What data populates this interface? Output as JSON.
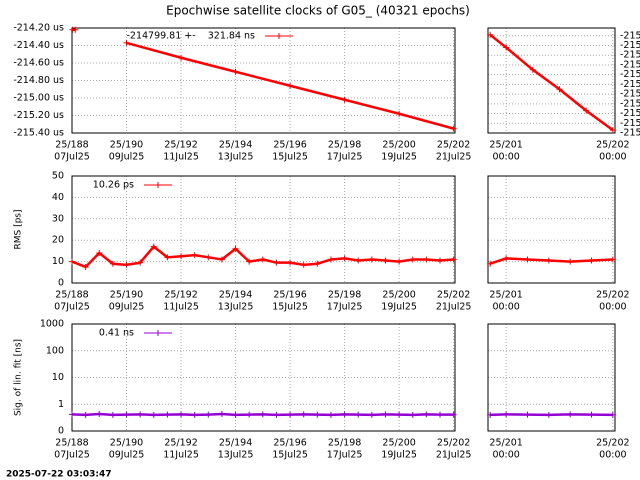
{
  "title": "Epochwise satellite clocks of G05_ (40321 epochs)",
  "timestamp": "2025-07-22 03:03:47",
  "chart_data": [
    {
      "type": "line",
      "grid": true,
      "xlim": [
        188,
        202.05
      ],
      "ylim": [
        -215.4,
        -214.2
      ],
      "xticks": [
        {
          "value": 188,
          "label": "25/188",
          "date": "07Jul25"
        },
        {
          "value": 190,
          "label": "25/190",
          "date": "09Jul25"
        },
        {
          "value": 192,
          "label": "25/192",
          "date": "11Jul25"
        },
        {
          "value": 194,
          "label": "25/194",
          "date": "13Jul25"
        },
        {
          "value": 196,
          "label": "25/196",
          "date": "15Jul25"
        },
        {
          "value": 198,
          "label": "25/198",
          "date": "17Jul25"
        },
        {
          "value": 200,
          "label": "25/200",
          "date": "19Jul25"
        },
        {
          "value": 202,
          "label": "25/202",
          "date": "21Jul25"
        }
      ],
      "yticks": [
        {
          "value": -215.4,
          "label": "-215.40 us"
        },
        {
          "value": -215.2,
          "label": "-215.20 us"
        },
        {
          "value": -215.0,
          "label": "-215.00 us"
        },
        {
          "value": -214.8,
          "label": "-214.80 us"
        },
        {
          "value": -214.6,
          "label": "-214.60 us"
        },
        {
          "value": -214.4,
          "label": "-214.40 us"
        },
        {
          "value": -214.2,
          "label": "-214.20 us"
        }
      ],
      "x": [
        188.02,
        188.12,
        189,
        190,
        192,
        194,
        196,
        198,
        200,
        202
      ],
      "series": [
        {
          "name": "-214799.81 +-    321.84 ns",
          "color": "#ff0000",
          "values": [
            -214.22,
            -214.22,
            null,
            -214.37,
            -214.54,
            -214.7,
            -214.86,
            -215.02,
            -215.18,
            -215.35
          ]
        }
      ]
    },
    {
      "type": "line",
      "grid": true,
      "yaxis_side": "right",
      "xlim": [
        200.83,
        202.02
      ],
      "ylim": [
        -215.38,
        -215.272
      ],
      "xticks": [
        {
          "value": 201,
          "label": "25/201",
          "date": "00:00"
        },
        {
          "value": 202,
          "label": "25/202",
          "date": "00:00"
        }
      ],
      "yticks": [
        {
          "value": -215.28,
          "label": "-215"
        },
        {
          "value": -215.29,
          "label": "-215"
        },
        {
          "value": -215.3,
          "label": "-215"
        },
        {
          "value": -215.31,
          "label": "-215"
        },
        {
          "value": -215.32,
          "label": "-215"
        },
        {
          "value": -215.33,
          "label": "-215"
        },
        {
          "value": -215.34,
          "label": "-215"
        },
        {
          "value": -215.35,
          "label": "-215"
        },
        {
          "value": -215.36,
          "label": "-215"
        },
        {
          "value": -215.37,
          "label": "-215"
        },
        {
          "value": -215.38,
          "label": "-215"
        }
      ],
      "x": [
        200.85,
        201,
        201.25,
        201.5,
        201.75,
        202.0
      ],
      "series": [
        {
          "color": "#ff0000",
          "values": [
            -215.279,
            -215.292,
            -215.315,
            -215.335,
            -215.357,
            -215.377
          ]
        }
      ]
    },
    {
      "type": "line",
      "grid": true,
      "ylabel": "RMS [ps]",
      "xlim": [
        188,
        202.05
      ],
      "ylim": [
        0,
        50
      ],
      "xticks": [
        {
          "value": 188,
          "label": "25/188",
          "date": "07Jul25"
        },
        {
          "value": 190,
          "label": "25/190",
          "date": "09Jul25"
        },
        {
          "value": 192,
          "label": "25/192",
          "date": "11Jul25"
        },
        {
          "value": 194,
          "label": "25/194",
          "date": "13Jul25"
        },
        {
          "value": 196,
          "label": "25/196",
          "date": "15Jul25"
        },
        {
          "value": 198,
          "label": "25/198",
          "date": "17Jul25"
        },
        {
          "value": 200,
          "label": "25/200",
          "date": "19Jul25"
        },
        {
          "value": 202,
          "label": "25/202",
          "date": "21Jul25"
        }
      ],
      "yticks": [
        0,
        10,
        20,
        30,
        40,
        50
      ],
      "x": [
        188,
        188.5,
        189,
        189.5,
        190,
        190.5,
        191,
        191.5,
        192,
        192.5,
        193,
        193.5,
        194,
        194.5,
        195,
        195.5,
        196,
        196.5,
        197,
        197.5,
        198,
        198.5,
        199,
        199.5,
        200,
        200.5,
        201,
        201.5,
        202
      ],
      "series": [
        {
          "name": "10.26 ps",
          "color": "#ff0000",
          "values": [
            10,
            7.5,
            14,
            9,
            8.5,
            9.5,
            17,
            12,
            12.5,
            13,
            12,
            11,
            16,
            10,
            11,
            9.5,
            9.5,
            8.5,
            9,
            11,
            11.5,
            10.5,
            11,
            10.5,
            10,
            11,
            11,
            10.5,
            11
          ]
        }
      ]
    },
    {
      "type": "line",
      "grid": true,
      "show_ytick_labels": false,
      "xlim": [
        200.83,
        202.02
      ],
      "ylim": [
        0,
        50
      ],
      "xticks": [
        {
          "value": 201,
          "label": "25/201",
          "date": "00:00"
        },
        {
          "value": 202,
          "label": "25/202",
          "date": "00:00"
        }
      ],
      "yticks": [
        0,
        10,
        20,
        30,
        40,
        50
      ],
      "x": [
        200.85,
        201,
        201.2,
        201.4,
        201.6,
        201.8,
        202.0
      ],
      "series": [
        {
          "color": "#ff0000",
          "values": [
            9,
            11.5,
            11,
            10.5,
            10,
            10.5,
            11
          ]
        }
      ]
    },
    {
      "type": "line",
      "grid": true,
      "log": true,
      "ylabel": "Sig. of lin. fit [ns]",
      "xlim": [
        188,
        202.05
      ],
      "ylim": [
        0.1,
        1000
      ],
      "xticks": [
        {
          "value": 188,
          "label": "25/188",
          "date": "07Jul25"
        },
        {
          "value": 190,
          "label": "25/190",
          "date": "09Jul25"
        },
        {
          "value": 192,
          "label": "25/192",
          "date": "11Jul25"
        },
        {
          "value": 194,
          "label": "25/194",
          "date": "13Jul25"
        },
        {
          "value": 196,
          "label": "25/196",
          "date": "15Jul25"
        },
        {
          "value": 198,
          "label": "25/198",
          "date": "17Jul25"
        },
        {
          "value": 200,
          "label": "25/200",
          "date": "19Jul25"
        },
        {
          "value": 202,
          "label": "25/202",
          "date": "21Jul25"
        }
      ],
      "yticks": [
        {
          "value": 0.1,
          "label": "0"
        },
        1,
        10,
        100,
        1000
      ],
      "x": [
        188,
        188.5,
        189,
        189.5,
        190,
        190.5,
        191,
        191.5,
        192,
        192.5,
        193,
        193.5,
        194,
        194.5,
        195,
        195.5,
        196,
        196.5,
        197,
        197.5,
        198,
        198.5,
        199,
        199.5,
        200,
        200.5,
        201,
        201.5,
        202
      ],
      "series": [
        {
          "name": "0.41 ns",
          "color": "#9400d3",
          "values": [
            0.42,
            0.4,
            0.43,
            0.4,
            0.41,
            0.42,
            0.4,
            0.41,
            0.42,
            0.4,
            0.41,
            0.43,
            0.4,
            0.41,
            0.42,
            0.4,
            0.41,
            0.42,
            0.41,
            0.4,
            0.42,
            0.41,
            0.4,
            0.42,
            0.41,
            0.4,
            0.42,
            0.41,
            0.41
          ]
        }
      ]
    },
    {
      "type": "line",
      "grid": true,
      "log": true,
      "show_ytick_labels": false,
      "xlim": [
        200.83,
        202.02
      ],
      "ylim": [
        0.1,
        1000
      ],
      "xticks": [
        {
          "value": 201,
          "label": "25/201",
          "date": "00:00"
        },
        {
          "value": 202,
          "label": "25/202",
          "date": "00:00"
        }
      ],
      "yticks": [
        0.1,
        1,
        10,
        100,
        1000
      ],
      "x": [
        200.85,
        201,
        201.2,
        201.4,
        201.6,
        201.8,
        202.0
      ],
      "series": [
        {
          "color": "#9400d3",
          "values": [
            0.4,
            0.42,
            0.41,
            0.4,
            0.42,
            0.41,
            0.4
          ]
        }
      ]
    }
  ]
}
